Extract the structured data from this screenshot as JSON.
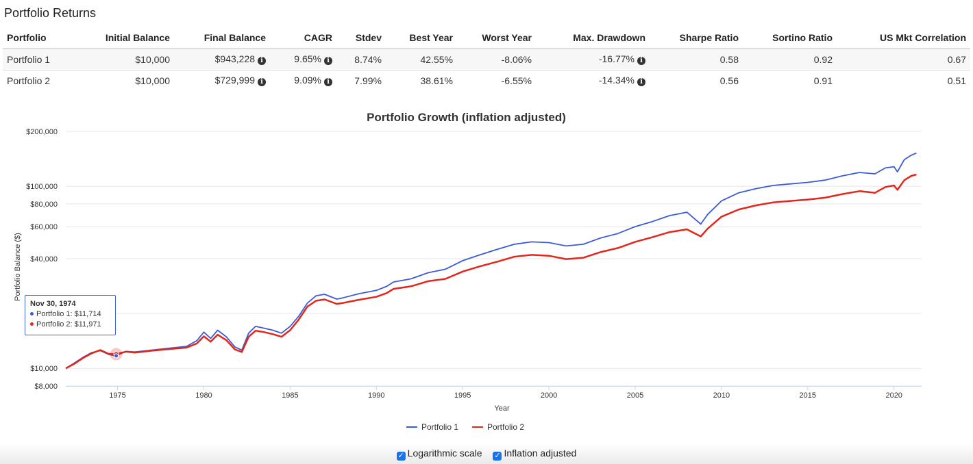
{
  "page": {
    "section_title": "Portfolio Returns"
  },
  "table": {
    "headers": [
      "Portfolio",
      "Initial Balance",
      "Final Balance",
      "CAGR",
      "Stdev",
      "Best Year",
      "Worst Year",
      "Max. Drawdown",
      "Sharpe Ratio",
      "Sortino Ratio",
      "US Mkt Correlation"
    ],
    "rows": [
      {
        "portfolio": "Portfolio 1",
        "initial": "$10,000",
        "final": "$943,228",
        "cagr": "9.65%",
        "stdev": "8.74%",
        "best": "42.55%",
        "worst": "-8.06%",
        "drawdown": "-16.77%",
        "sharpe": "0.58",
        "sortino": "0.92",
        "correlation": "0.67"
      },
      {
        "portfolio": "Portfolio 2",
        "initial": "$10,000",
        "final": "$729,999",
        "cagr": "9.09%",
        "stdev": "7.99%",
        "best": "38.61%",
        "worst": "-6.55%",
        "drawdown": "-14.34%",
        "sharpe": "0.56",
        "sortino": "0.91",
        "correlation": "0.51"
      }
    ]
  },
  "icons": {
    "info": "info-circle-icon",
    "checkbox": "checkbox-checked-icon"
  },
  "chart_data": {
    "type": "line",
    "title": "Portfolio Growth (inflation adjusted)",
    "xlabel": "Year",
    "ylabel": "Portfolio Balance ($)",
    "y_scale": "log",
    "ylim": [
      8000,
      200000
    ],
    "xlim": [
      1972,
      2021.6
    ],
    "y_ticks": [
      8000,
      10000,
      40000,
      60000,
      80000,
      100000,
      200000
    ],
    "y_tick_labels": [
      "$8,000",
      "$10,000",
      "$40,000",
      "$60,000",
      "$80,000",
      "$100,000",
      "$200,000"
    ],
    "y_gridlines": [
      8000,
      10000,
      20000,
      40000,
      60000,
      80000,
      100000,
      200000
    ],
    "x_ticks": [
      1975,
      1980,
      1985,
      1990,
      1995,
      2000,
      2005,
      2010,
      2015,
      2020
    ],
    "grid": true,
    "legend_position": "bottom-center",
    "series": [
      {
        "name": "Portfolio 1",
        "color": "#3b5bd6",
        "x": [
          1972.0,
          1972.5,
          1973.0,
          1973.5,
          1974.0,
          1974.5,
          1974.9,
          1975.5,
          1976.0,
          1977.0,
          1978.0,
          1979.0,
          1979.6,
          1980.0,
          1980.4,
          1980.8,
          1981.3,
          1981.8,
          1982.2,
          1982.6,
          1983.0,
          1983.5,
          1984.0,
          1984.5,
          1985.0,
          1985.5,
          1986.0,
          1986.5,
          1987.0,
          1987.7,
          1988.0,
          1989.0,
          1990.0,
          1990.6,
          1991.0,
          1992.0,
          1993.0,
          1994.0,
          1995.0,
          1996.0,
          1997.0,
          1998.0,
          1999.0,
          2000.0,
          2001.0,
          2002.0,
          2003.0,
          2004.0,
          2005.0,
          2006.0,
          2007.0,
          2008.0,
          2008.8,
          2009.2,
          2010.0,
          2011.0,
          2012.0,
          2013.0,
          2014.0,
          2015.0,
          2016.0,
          2017.0,
          2018.0,
          2018.9,
          2019.5,
          2020.0,
          2020.2,
          2020.6,
          2021.0,
          2021.3
        ],
        "y": [
          10000,
          10700,
          11500,
          12200,
          12500,
          11900,
          11714,
          12400,
          12300,
          12600,
          12900,
          13200,
          14200,
          15800,
          14600,
          16200,
          14900,
          13100,
          12600,
          15600,
          17000,
          16600,
          16200,
          15600,
          17000,
          19300,
          22800,
          25000,
          25500,
          24000,
          24300,
          25700,
          26800,
          28200,
          29800,
          31000,
          33500,
          35000,
          39000,
          42000,
          45000,
          48000,
          49500,
          49000,
          47000,
          48000,
          52000,
          55000,
          60000,
          64000,
          69000,
          72000,
          62000,
          70000,
          83000,
          92000,
          97000,
          101000,
          103000,
          105000,
          108000,
          114000,
          119000,
          117000,
          126000,
          128000,
          120000,
          140000,
          148000,
          152000
        ]
      },
      {
        "name": "Portfolio 2",
        "color": "#e3261b",
        "x": [
          1972.0,
          1972.5,
          1973.0,
          1973.5,
          1974.0,
          1974.5,
          1974.9,
          1975.5,
          1976.0,
          1977.0,
          1978.0,
          1979.0,
          1979.6,
          1980.0,
          1980.4,
          1980.8,
          1981.3,
          1981.8,
          1982.2,
          1982.6,
          1983.0,
          1983.5,
          1984.0,
          1984.5,
          1985.0,
          1985.5,
          1986.0,
          1986.5,
          1987.0,
          1987.7,
          1988.0,
          1989.0,
          1990.0,
          1990.6,
          1991.0,
          1992.0,
          1993.0,
          1994.0,
          1995.0,
          1996.0,
          1997.0,
          1998.0,
          1999.0,
          2000.0,
          2001.0,
          2002.0,
          2003.0,
          2004.0,
          2005.0,
          2006.0,
          2007.0,
          2008.0,
          2008.8,
          2009.2,
          2010.0,
          2011.0,
          2012.0,
          2013.0,
          2014.0,
          2015.0,
          2016.0,
          2017.0,
          2018.0,
          2018.9,
          2019.5,
          2020.0,
          2020.2,
          2020.6,
          2021.0,
          2021.3
        ],
        "y": [
          10000,
          10600,
          11400,
          12100,
          12600,
          12000,
          11971,
          12350,
          12200,
          12500,
          12750,
          13000,
          13700,
          15000,
          14000,
          15300,
          14300,
          12700,
          12300,
          14900,
          16100,
          15800,
          15400,
          14900,
          16200,
          18500,
          21800,
          23500,
          23900,
          22600,
          22800,
          23800,
          24700,
          25900,
          27300,
          28200,
          30100,
          31000,
          34000,
          36300,
          38500,
          41000,
          42000,
          41500,
          39800,
          40500,
          43500,
          45800,
          49500,
          52500,
          56000,
          58000,
          53000,
          58500,
          68000,
          74500,
          78500,
          81500,
          83000,
          84500,
          86500,
          90500,
          94000,
          92000,
          99000,
          101000,
          95500,
          108000,
          114000,
          116000
        ]
      }
    ],
    "tooltip": {
      "date": "Nov 30, 1974",
      "lines": [
        "Portfolio 1: $11,714",
        "Portfolio 2: $11,971"
      ],
      "x": 1974.92
    }
  },
  "options": {
    "log_scale_label": "Logarithmic scale",
    "inflation_label": "Inflation adjusted",
    "log_scale_checked": true,
    "inflation_checked": true
  }
}
